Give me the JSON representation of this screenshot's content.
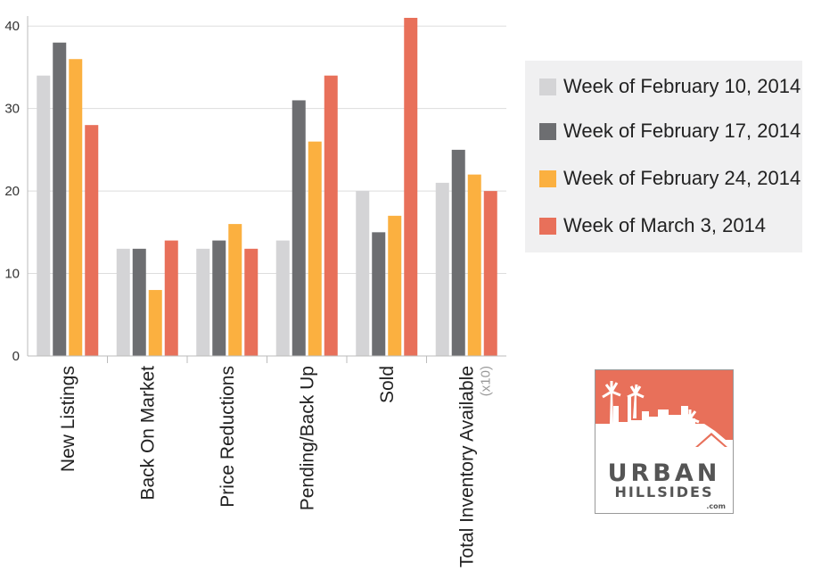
{
  "chart_data": {
    "type": "bar",
    "title": "",
    "xlabel": "",
    "ylabel": "",
    "ylim": [
      0,
      41
    ],
    "yticks": [
      0,
      10,
      20,
      30,
      40
    ],
    "grid": true,
    "legend_position": "right",
    "categories": [
      "New Listings",
      "Back On Market",
      "Price Reductions",
      "Pending/Back Up",
      "Sold",
      "Total Inventory Available"
    ],
    "category_note": {
      "category": "Total Inventory Available",
      "text": "(x10)"
    },
    "series": [
      {
        "name": "Week of February 10, 2014",
        "color": "#d4d4d6",
        "values": [
          34,
          13,
          13,
          14,
          20,
          21
        ]
      },
      {
        "name": "Week of February 17, 2014",
        "color": "#6d6e71",
        "values": [
          38,
          13,
          14,
          31,
          15,
          25
        ]
      },
      {
        "name": "Week of February 24, 2014",
        "color": "#fbb040",
        "values": [
          36,
          8,
          16,
          26,
          17,
          22
        ]
      },
      {
        "name": "Week of March 3, 2014",
        "color": "#e8705a",
        "values": [
          28,
          14,
          13,
          34,
          41,
          20
        ]
      }
    ]
  },
  "logo": {
    "line1": "URBAN",
    "line2": "HILLSIDES",
    "line3": ".com"
  }
}
